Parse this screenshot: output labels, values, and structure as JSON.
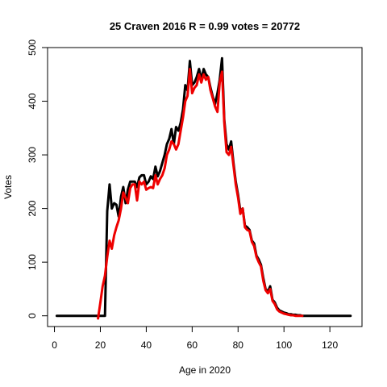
{
  "chart_data": {
    "type": "line",
    "title": "25 Craven 2016 R = 0.99 votes = 20772",
    "xlabel": "Age in 2020",
    "ylabel": "Votes",
    "xlim": [
      -3,
      134
    ],
    "ylim": [
      -20,
      500
    ],
    "xticks": [
      0,
      20,
      40,
      60,
      80,
      100,
      120
    ],
    "yticks": [
      0,
      100,
      200,
      300,
      400,
      500
    ],
    "grid": false,
    "legend": "none",
    "series": [
      {
        "color": "#000000",
        "points": [
          [
            1,
            0
          ],
          [
            2,
            0
          ],
          [
            3,
            0
          ],
          [
            4,
            0
          ],
          [
            5,
            0
          ],
          [
            6,
            0
          ],
          [
            7,
            0
          ],
          [
            8,
            0
          ],
          [
            9,
            0
          ],
          [
            10,
            0
          ],
          [
            11,
            0
          ],
          [
            12,
            0
          ],
          [
            13,
            0
          ],
          [
            14,
            0
          ],
          [
            15,
            0
          ],
          [
            16,
            0
          ],
          [
            17,
            0
          ],
          [
            18,
            0
          ],
          [
            19,
            0
          ],
          [
            20,
            0
          ],
          [
            21,
            0
          ],
          [
            22,
            0
          ],
          [
            23,
            195
          ],
          [
            24,
            245
          ],
          [
            25,
            200
          ],
          [
            26,
            210
          ],
          [
            27,
            207
          ],
          [
            28,
            185
          ],
          [
            29,
            222
          ],
          [
            30,
            240
          ],
          [
            31,
            210
          ],
          [
            32,
            235
          ],
          [
            33,
            250
          ],
          [
            34,
            250
          ],
          [
            35,
            250
          ],
          [
            36,
            240
          ],
          [
            37,
            258
          ],
          [
            38,
            262
          ],
          [
            39,
            262
          ],
          [
            40,
            245
          ],
          [
            41,
            250
          ],
          [
            42,
            260
          ],
          [
            43,
            255
          ],
          [
            44,
            278
          ],
          [
            45,
            260
          ],
          [
            46,
            270
          ],
          [
            47,
            285
          ],
          [
            48,
            300
          ],
          [
            49,
            320
          ],
          [
            50,
            330
          ],
          [
            51,
            348
          ],
          [
            52,
            320
          ],
          [
            53,
            352
          ],
          [
            54,
            345
          ],
          [
            55,
            360
          ],
          [
            56,
            385
          ],
          [
            57,
            430
          ],
          [
            58,
            420
          ],
          [
            59,
            475
          ],
          [
            60,
            430
          ],
          [
            61,
            435
          ],
          [
            62,
            445
          ],
          [
            63,
            460
          ],
          [
            64,
            440
          ],
          [
            65,
            460
          ],
          [
            66,
            450
          ],
          [
            67,
            445
          ],
          [
            68,
            425
          ],
          [
            69,
            408
          ],
          [
            70,
            395
          ],
          [
            71,
            415
          ],
          [
            72,
            440
          ],
          [
            73,
            480
          ],
          [
            74,
            365
          ],
          [
            75,
            320
          ],
          [
            76,
            310
          ],
          [
            77,
            325
          ],
          [
            78,
            285
          ],
          [
            79,
            250
          ],
          [
            80,
            225
          ],
          [
            81,
            195
          ],
          [
            82,
            200
          ],
          [
            83,
            168
          ],
          [
            84,
            165
          ],
          [
            85,
            160
          ],
          [
            86,
            140
          ],
          [
            87,
            135
          ],
          [
            88,
            112
          ],
          [
            89,
            105
          ],
          [
            90,
            95
          ],
          [
            91,
            70
          ],
          [
            92,
            50
          ],
          [
            93,
            45
          ],
          [
            94,
            55
          ],
          [
            95,
            30
          ],
          [
            96,
            25
          ],
          [
            97,
            15
          ],
          [
            98,
            10
          ],
          [
            99,
            8
          ],
          [
            100,
            6
          ],
          [
            101,
            5
          ],
          [
            102,
            3
          ],
          [
            103,
            3
          ],
          [
            104,
            2
          ],
          [
            105,
            2
          ],
          [
            106,
            1
          ],
          [
            107,
            1
          ],
          [
            108,
            0
          ],
          [
            109,
            0
          ],
          [
            110,
            0
          ],
          [
            111,
            0
          ],
          [
            112,
            0
          ],
          [
            113,
            0
          ],
          [
            114,
            0
          ],
          [
            115,
            0
          ],
          [
            116,
            0
          ],
          [
            117,
            0
          ],
          [
            118,
            0
          ],
          [
            119,
            0
          ],
          [
            120,
            0
          ],
          [
            121,
            0
          ],
          [
            122,
            0
          ],
          [
            123,
            0
          ],
          [
            124,
            0
          ],
          [
            125,
            0
          ],
          [
            126,
            0
          ],
          [
            127,
            0
          ],
          [
            128,
            0
          ],
          [
            129,
            0
          ]
        ]
      },
      {
        "color": "#ee0000",
        "points": [
          [
            19,
            -5
          ],
          [
            20,
            25
          ],
          [
            21,
            55
          ],
          [
            22,
            75
          ],
          [
            23,
            110
          ],
          [
            24,
            140
          ],
          [
            25,
            125
          ],
          [
            26,
            150
          ],
          [
            27,
            165
          ],
          [
            28,
            178
          ],
          [
            29,
            200
          ],
          [
            30,
            230
          ],
          [
            31,
            220
          ],
          [
            32,
            210
          ],
          [
            33,
            238
          ],
          [
            34,
            245
          ],
          [
            35,
            245
          ],
          [
            36,
            215
          ],
          [
            37,
            250
          ],
          [
            38,
            245
          ],
          [
            39,
            250
          ],
          [
            40,
            235
          ],
          [
            41,
            238
          ],
          [
            42,
            240
          ],
          [
            43,
            238
          ],
          [
            44,
            262
          ],
          [
            45,
            245
          ],
          [
            46,
            255
          ],
          [
            47,
            262
          ],
          [
            48,
            275
          ],
          [
            49,
            300
          ],
          [
            50,
            310
          ],
          [
            51,
            325
          ],
          [
            52,
            320
          ],
          [
            53,
            310
          ],
          [
            54,
            320
          ],
          [
            55,
            345
          ],
          [
            56,
            370
          ],
          [
            57,
            400
          ],
          [
            58,
            410
          ],
          [
            59,
            460
          ],
          [
            60,
            415
          ],
          [
            61,
            425
          ],
          [
            62,
            430
          ],
          [
            63,
            450
          ],
          [
            64,
            435
          ],
          [
            65,
            450
          ],
          [
            66,
            440
          ],
          [
            67,
            445
          ],
          [
            68,
            420
          ],
          [
            69,
            405
          ],
          [
            70,
            390
          ],
          [
            71,
            380
          ],
          [
            72,
            435
          ],
          [
            73,
            455
          ],
          [
            74,
            360
          ],
          [
            75,
            305
          ],
          [
            76,
            300
          ],
          [
            77,
            315
          ],
          [
            78,
            280
          ],
          [
            79,
            245
          ],
          [
            80,
            220
          ],
          [
            81,
            190
          ],
          [
            82,
            200
          ],
          [
            83,
            165
          ],
          [
            84,
            160
          ],
          [
            85,
            158
          ],
          [
            86,
            138
          ],
          [
            87,
            130
          ],
          [
            88,
            110
          ],
          [
            89,
            100
          ],
          [
            90,
            92
          ],
          [
            91,
            65
          ],
          [
            92,
            48
          ],
          [
            93,
            42
          ],
          [
            94,
            50
          ],
          [
            95,
            28
          ],
          [
            96,
            22
          ],
          [
            97,
            12
          ],
          [
            98,
            8
          ],
          [
            99,
            6
          ],
          [
            100,
            4
          ],
          [
            101,
            3
          ],
          [
            102,
            2
          ],
          [
            103,
            1
          ],
          [
            104,
            1
          ],
          [
            105,
            0
          ],
          [
            106,
            0
          ],
          [
            107,
            0
          ],
          [
            108,
            0
          ]
        ]
      }
    ]
  }
}
